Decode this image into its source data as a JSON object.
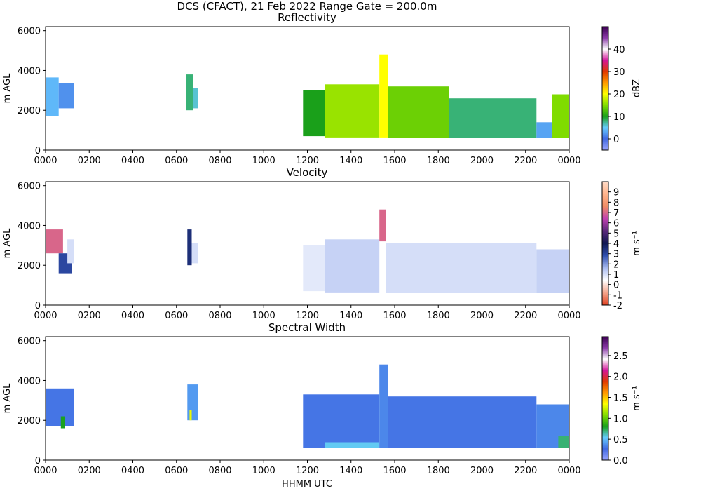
{
  "figure": {
    "title": "DCS (CFACT), 21 Feb 2022 Range Gate = 200.0m",
    "xlabel": "HHMM UTC"
  },
  "chart_data": [
    {
      "type": "heatmap",
      "title": "Reflectivity",
      "ylabel": "m AGL",
      "xlabel": "",
      "x_tick_labels": [
        "0000",
        "0200",
        "0400",
        "0600",
        "0800",
        "1000",
        "1200",
        "1400",
        "1600",
        "1800",
        "2000",
        "2200",
        "0000"
      ],
      "xlim_hours": [
        0,
        24
      ],
      "y_ticks": [
        0,
        2000,
        4000,
        6000
      ],
      "ylim": [
        0,
        6200
      ],
      "colorbar": {
        "label": "dBZ",
        "range": [
          -5,
          50
        ],
        "ticks": [
          0,
          10,
          20,
          30,
          40
        ],
        "tick_labels": [
          "0",
          "10",
          "20",
          "30",
          "40"
        ],
        "colors": [
          "#9aa6ff",
          "#4169e1",
          "#66ccff",
          "#1aa01a",
          "#80dc00",
          "#ffff00",
          "#ff9900",
          "#e03a00",
          "#d4169a",
          "#ffffff",
          "#8b3aa8",
          "#3a0050"
        ]
      },
      "regions": [
        {
          "t0": 0.0,
          "t1": 0.6,
          "bottom": 1700,
          "top": 3650,
          "value": 4
        },
        {
          "t0": 0.6,
          "t1": 1.3,
          "bottom": 2100,
          "top": 3350,
          "value": 2
        },
        {
          "t0": 6.45,
          "t1": 6.75,
          "bottom": 2000,
          "top": 3800,
          "value": 8
        },
        {
          "t0": 6.75,
          "t1": 7.0,
          "bottom": 2100,
          "top": 3100,
          "value": 6
        },
        {
          "t0": 11.8,
          "t1": 12.8,
          "bottom": 700,
          "top": 3000,
          "value": 10
        },
        {
          "t0": 12.8,
          "t1": 15.3,
          "bottom": 600,
          "top": 3300,
          "value": 16
        },
        {
          "t0": 15.3,
          "t1": 15.7,
          "bottom": 600,
          "top": 4800,
          "value": 20
        },
        {
          "t0": 15.7,
          "t1": 18.5,
          "bottom": 600,
          "top": 3200,
          "value": 14
        },
        {
          "t0": 18.5,
          "t1": 22.5,
          "bottom": 600,
          "top": 2600,
          "value": 8
        },
        {
          "t0": 22.5,
          "t1": 23.2,
          "bottom": 600,
          "top": 1400,
          "value": 3
        },
        {
          "t0": 23.2,
          "t1": 24.0,
          "bottom": 600,
          "top": 2800,
          "value": 15
        }
      ]
    },
    {
      "type": "heatmap",
      "title": "Velocity",
      "ylabel": "m AGL",
      "xlabel": "",
      "x_tick_labels": [
        "0000",
        "0200",
        "0400",
        "0600",
        "0800",
        "1000",
        "1200",
        "1400",
        "1600",
        "1800",
        "2000",
        "2200",
        "0000"
      ],
      "xlim_hours": [
        0,
        24
      ],
      "y_ticks": [
        0,
        2000,
        4000,
        6000
      ],
      "ylim": [
        0,
        6200
      ],
      "colorbar": {
        "label": "m s⁻¹",
        "range": [
          -2,
          10
        ],
        "ticks": [
          -2,
          -1,
          0,
          1,
          2,
          3,
          4,
          5,
          6,
          7,
          8,
          9
        ],
        "tick_labels": [
          "-2",
          "-1",
          "0",
          "1",
          "2",
          "3",
          "4",
          "5",
          "6",
          "7",
          "8",
          "9"
        ],
        "colors": [
          "#e04020",
          "#f5a58c",
          "#ffffff",
          "#aabcf0",
          "#3050b0",
          "#101850",
          "#5a2a7a",
          "#c040b0",
          "#f08c64",
          "#ffb48c",
          "#ffdcc8"
        ]
      },
      "regions": [
        {
          "t0": 0.0,
          "t1": 0.8,
          "bottom": 2600,
          "top": 3800,
          "value": 7
        },
        {
          "t0": 0.6,
          "t1": 1.2,
          "bottom": 1600,
          "top": 2600,
          "value": 3
        },
        {
          "t0": 1.0,
          "t1": 1.3,
          "bottom": 2100,
          "top": 3300,
          "value": 1
        },
        {
          "t0": 6.5,
          "t1": 6.7,
          "bottom": 2000,
          "top": 3800,
          "value": 3.5
        },
        {
          "t0": 6.7,
          "t1": 7.0,
          "bottom": 2100,
          "top": 3100,
          "value": 1
        },
        {
          "t0": 11.8,
          "t1": 12.8,
          "bottom": 700,
          "top": 3000,
          "value": 0.8
        },
        {
          "t0": 12.8,
          "t1": 15.3,
          "bottom": 600,
          "top": 3300,
          "value": 1.2
        },
        {
          "t0": 15.3,
          "t1": 15.6,
          "bottom": 3200,
          "top": 4800,
          "value": 7
        },
        {
          "t0": 15.6,
          "t1": 22.5,
          "bottom": 600,
          "top": 3100,
          "value": 1
        },
        {
          "t0": 22.5,
          "t1": 24.0,
          "bottom": 600,
          "top": 2800,
          "value": 1.2
        }
      ]
    },
    {
      "type": "heatmap",
      "title": "Spectral Width",
      "ylabel": "m AGL",
      "xlabel": "HHMM UTC",
      "x_tick_labels": [
        "0000",
        "0200",
        "0400",
        "0600",
        "0800",
        "1000",
        "1200",
        "1400",
        "1600",
        "1800",
        "2000",
        "2200",
        "0000"
      ],
      "xlim_hours": [
        0,
        24
      ],
      "y_ticks": [
        0,
        2000,
        4000,
        6000
      ],
      "ylim": [
        0,
        6200
      ],
      "colorbar": {
        "label": "m s⁻¹",
        "range": [
          0,
          2.95
        ],
        "ticks": [
          0,
          0.5,
          1.0,
          1.5,
          2.0,
          2.5
        ],
        "tick_labels": [
          "0.0",
          "0.5",
          "1.0",
          "1.5",
          "2.0",
          "2.5"
        ],
        "colors": [
          "#9aa6ff",
          "#4169e1",
          "#66ccff",
          "#1aa01a",
          "#80dc00",
          "#ffff00",
          "#ff9900",
          "#e03a00",
          "#d4169a",
          "#ffffff",
          "#8b3aa8",
          "#3a0050"
        ]
      },
      "regions": [
        {
          "t0": 0.0,
          "t1": 1.3,
          "bottom": 1700,
          "top": 3600,
          "value": 0.3
        },
        {
          "t0": 0.7,
          "t1": 0.9,
          "bottom": 1600,
          "top": 2200,
          "value": 0.8
        },
        {
          "t0": 6.5,
          "t1": 7.0,
          "bottom": 2000,
          "top": 3800,
          "value": 0.4
        },
        {
          "t0": 6.6,
          "t1": 6.7,
          "bottom": 2000,
          "top": 2500,
          "value": 1.3
        },
        {
          "t0": 11.8,
          "t1": 15.3,
          "bottom": 600,
          "top": 3300,
          "value": 0.3
        },
        {
          "t0": 12.8,
          "t1": 15.3,
          "bottom": 600,
          "top": 900,
          "value": 0.55
        },
        {
          "t0": 15.3,
          "t1": 15.7,
          "bottom": 600,
          "top": 4800,
          "value": 0.35
        },
        {
          "t0": 15.7,
          "t1": 22.5,
          "bottom": 600,
          "top": 3200,
          "value": 0.3
        },
        {
          "t0": 22.5,
          "t1": 24.0,
          "bottom": 600,
          "top": 2800,
          "value": 0.35
        },
        {
          "t0": 23.5,
          "t1": 24.0,
          "bottom": 600,
          "top": 1200,
          "value": 0.7
        }
      ]
    }
  ]
}
